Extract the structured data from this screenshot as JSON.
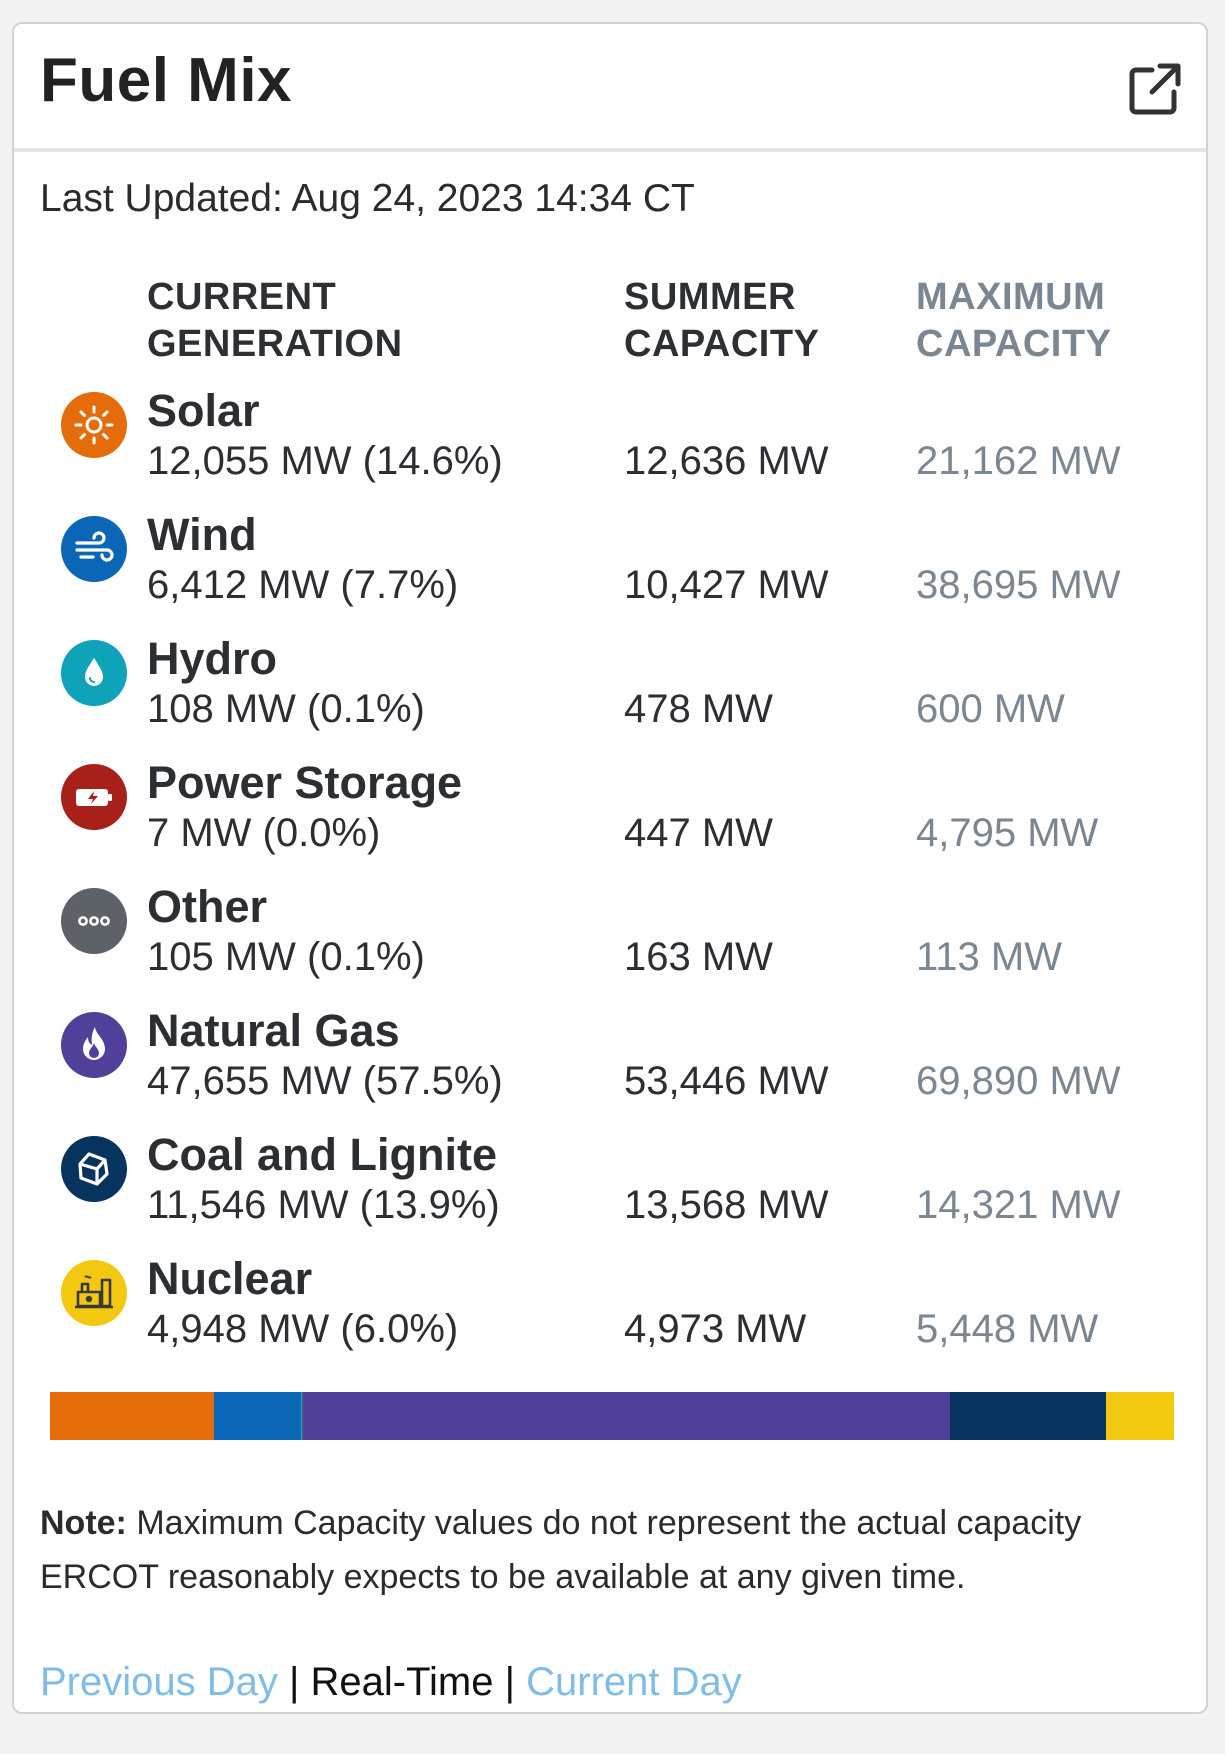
{
  "header": {
    "title": "Fuel Mix"
  },
  "last_updated": "Last Updated: Aug 24, 2023 14:34 CT",
  "columns": {
    "current_generation": "CURRENT\nGENERATION",
    "summer_capacity": "SUMMER\nCAPACITY",
    "maximum_capacity": "MAXIMUM\nCAPACITY"
  },
  "fuels": [
    {
      "name": "Solar",
      "generation": "12,055 MW (14.6%)",
      "summer": "12,636 MW",
      "max": "21,162 MW",
      "icon": "sun-icon",
      "color": "#e46c0a",
      "share": 14.6
    },
    {
      "name": "Wind",
      "generation": "6,412 MW (7.7%)",
      "summer": "10,427 MW",
      "max": "38,695 MW",
      "icon": "wind-icon",
      "color": "#0b66b8",
      "share": 7.7
    },
    {
      "name": "Hydro",
      "generation": "108 MW (0.1%)",
      "summer": "478 MW",
      "max": "600 MW",
      "icon": "water-drop-icon",
      "color": "#0fa3b9",
      "share": 0.1
    },
    {
      "name": "Power Storage",
      "generation": "7 MW (0.0%)",
      "summer": "447 MW",
      "max": "4,795 MW",
      "icon": "battery-icon",
      "color": "#a8201a",
      "share": 0.0
    },
    {
      "name": "Other",
      "generation": "105 MW (0.1%)",
      "summer": "163 MW",
      "max": "113 MW",
      "icon": "ellipsis-icon",
      "color": "#5d6268",
      "share": 0.1
    },
    {
      "name": "Natural Gas",
      "generation": "47,655 MW (57.5%)",
      "summer": "53,446 MW",
      "max": "69,890 MW",
      "icon": "flame-icon",
      "color": "#51409a",
      "share": 57.5
    },
    {
      "name": "Coal and Lignite",
      "generation": "11,546 MW (13.9%)",
      "summer": "13,568 MW",
      "max": "14,321 MW",
      "icon": "coal-icon",
      "color": "#06345f",
      "share": 13.9
    },
    {
      "name": "Nuclear",
      "generation": "4,948 MW (6.0%)",
      "summer": "4,973 MW",
      "max": "5,448 MW",
      "icon": "nuclear-plant-icon",
      "color": "#f2c811",
      "share": 6.0
    }
  ],
  "note": {
    "label": "Note:",
    "text": " Maximum Capacity values do not represent the actual capacity ERCOT reasonably expects to be available at any given time."
  },
  "nav": {
    "previous_day": "Previous Day",
    "separator": " | ",
    "real_time": "Real-Time",
    "current_day": "Current Day"
  },
  "colors": {
    "link": "#7fbde8",
    "muted": "#7a8691"
  }
}
